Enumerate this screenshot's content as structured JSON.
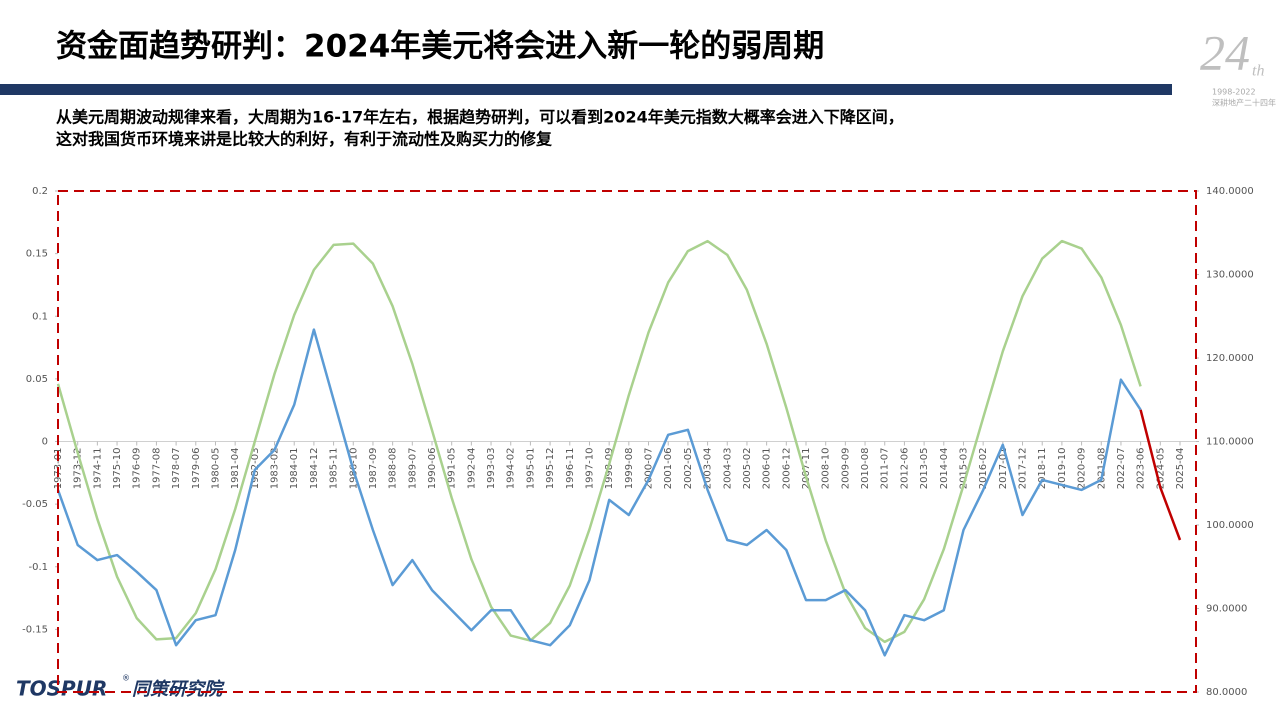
{
  "header": {
    "title": "资金面趋势研判：2024年美元将会进入新一轮的弱周期",
    "subtitle": [
      "从美元周期波动规律来看，大周期为16-17年左右，根据趋势研判，可以看到2024年美元指数大概率会进入下降区间，",
      "这对我国货币环境来讲是比较大的利好，有利于流动性及购买力的修复"
    ]
  },
  "logo": {
    "number": "24",
    "suffix": "th",
    "years": "1998-2022",
    "slogan": "深耕地产二十四年"
  },
  "footer": {
    "brand": "TOSPUR",
    "mark": "®",
    "institute": "同策研究院"
  },
  "chart_data": {
    "type": "line",
    "categories": [
      "1973-01",
      "1973-12",
      "1974-11",
      "1975-10",
      "1976-09",
      "1977-08",
      "1978-07",
      "1979-06",
      "1980-05",
      "1981-04",
      "1982-03",
      "1983-02",
      "1984-01",
      "1984-12",
      "1985-11",
      "1986-10",
      "1987-09",
      "1988-08",
      "1989-07",
      "1990-06",
      "1991-05",
      "1992-04",
      "1993-03",
      "1994-02",
      "1995-01",
      "1995-12",
      "1996-11",
      "1997-10",
      "1998-09",
      "1999-08",
      "2000-07",
      "2001-06",
      "2002-05",
      "2003-04",
      "2004-03",
      "2005-02",
      "2006-01",
      "2006-12",
      "2007-11",
      "2008-10",
      "2009-09",
      "2010-08",
      "2011-07",
      "2012-06",
      "2013-05",
      "2014-04",
      "2015-03",
      "2016-02",
      "2017-01",
      "2017-12",
      "2018-11",
      "2019-10",
      "2020-09",
      "2021-08",
      "2022-07",
      "2023-06",
      "2024-05",
      "2025-04"
    ],
    "series": [
      {
        "color": "#a9d18e",
        "values": [
          0.046,
          -0.009,
          -0.062,
          -0.108,
          -0.141,
          -0.158,
          -0.157,
          -0.137,
          -0.102,
          -0.054,
          0.0,
          0.054,
          0.101,
          0.137,
          0.157,
          0.158,
          0.142,
          0.108,
          0.062,
          0.009,
          -0.045,
          -0.094,
          -0.132,
          -0.155,
          -0.159,
          -0.145,
          -0.115,
          -0.07,
          -0.018,
          0.037,
          0.087,
          0.127,
          0.152,
          0.16,
          0.149,
          0.121,
          0.078,
          0.027,
          -0.028,
          -0.079,
          -0.121,
          -0.149,
          -0.16,
          -0.152,
          -0.126,
          -0.086,
          -0.035,
          0.019,
          0.072,
          0.116,
          0.146,
          0.16,
          0.154,
          0.131,
          0.093,
          0.044,
          null,
          null
        ]
      },
      {
        "color": "#5b9bd5",
        "axis": "y2",
        "values": [
          104.2,
          97.6,
          95.8,
          96.4,
          94.4,
          92.2,
          85.6,
          88.6,
          89.2,
          97.0,
          106.6,
          109.0,
          114.4,
          123.4,
          115.0,
          106.6,
          99.4,
          92.8,
          95.8,
          92.2,
          89.8,
          87.4,
          89.8,
          89.8,
          86.2,
          85.6,
          88.0,
          93.4,
          103.0,
          101.2,
          105.4,
          110.8,
          111.4,
          104.2,
          98.2,
          97.6,
          99.4,
          97.0,
          91.0,
          91.0,
          92.2,
          89.8,
          84.4,
          89.2,
          88.6,
          89.8,
          99.4,
          104.2,
          109.6,
          101.2,
          105.4,
          104.8,
          104.2,
          105.4,
          117.4,
          113.8,
          null,
          null
        ]
      },
      {
        "color": "#c00000",
        "axis": "y2",
        "values": [
          null,
          null,
          null,
          null,
          null,
          null,
          null,
          null,
          null,
          null,
          null,
          null,
          null,
          null,
          null,
          null,
          null,
          null,
          null,
          null,
          null,
          null,
          null,
          null,
          null,
          null,
          null,
          null,
          null,
          null,
          null,
          null,
          null,
          null,
          null,
          null,
          null,
          null,
          null,
          null,
          null,
          null,
          null,
          null,
          null,
          null,
          null,
          null,
          null,
          null,
          null,
          null,
          null,
          null,
          null,
          113.8,
          104.5,
          98.2
        ]
      }
    ],
    "ylim": [
      -0.2,
      0.2
    ],
    "yticks": [
      0.2,
      0.15,
      0.1,
      0.05,
      0,
      -0.05,
      -0.1,
      -0.15
    ],
    "y2lim": [
      80,
      140
    ],
    "y2ticks": [
      {
        "value": 140,
        "label": "140.0000"
      },
      {
        "value": 130,
        "label": "130.0000"
      },
      {
        "value": 120,
        "label": "120.0000"
      },
      {
        "value": 110,
        "label": "110.0000"
      },
      {
        "value": 100,
        "label": "100.0000"
      },
      {
        "value": 90,
        "label": "90.0000"
      },
      {
        "value": 80,
        "label": "80.0000"
      }
    ],
    "frame_color": "#c00000"
  }
}
